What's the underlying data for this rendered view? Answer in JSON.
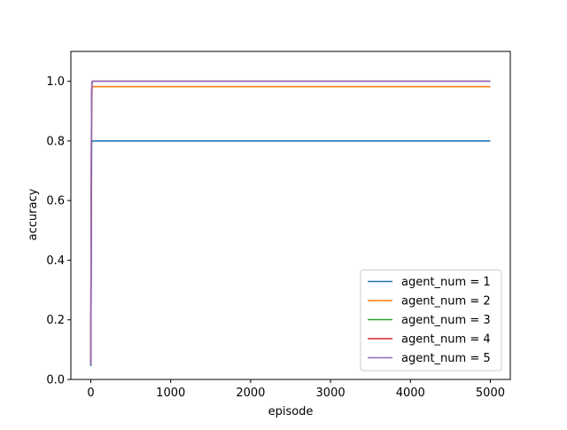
{
  "chart_data": {
    "type": "line",
    "title": "",
    "xlabel": "episode",
    "ylabel": "accuracy",
    "xlim": [
      -250,
      5250
    ],
    "ylim": [
      0.0,
      1.1
    ],
    "xticks": [
      0,
      1000,
      2000,
      3000,
      4000,
      5000
    ],
    "xtick_labels": [
      "0",
      "1000",
      "2000",
      "3000",
      "4000",
      "5000"
    ],
    "yticks": [
      0.0,
      0.2,
      0.4,
      0.6,
      0.8,
      1.0
    ],
    "ytick_labels": [
      "0.0",
      "0.2",
      "0.4",
      "0.6",
      "0.8",
      "1.0"
    ],
    "grid": false,
    "legend_position": "lower-right",
    "series": [
      {
        "name": "agent_num = 1",
        "color": "#1f77b4",
        "x": [
          0,
          5,
          10,
          15,
          20,
          30,
          5000
        ],
        "y": [
          0.045,
          0.5,
          0.79,
          0.8,
          0.8,
          0.8,
          0.8
        ]
      },
      {
        "name": "agent_num = 2",
        "color": "#ff7f0e",
        "x": [
          0,
          5,
          10,
          15,
          20,
          30,
          5000
        ],
        "y": [
          0.06,
          0.6,
          0.93,
          0.98,
          0.982,
          0.982,
          0.982
        ]
      },
      {
        "name": "agent_num = 3",
        "color": "#2ca02c",
        "x": [
          0,
          5,
          10,
          15,
          20,
          30,
          5000
        ],
        "y": [
          0.05,
          0.62,
          0.95,
          0.995,
          1.0,
          1.0,
          1.0
        ]
      },
      {
        "name": "agent_num = 4",
        "color": "#d62728",
        "x": [
          0,
          5,
          10,
          15,
          20,
          30,
          5000
        ],
        "y": [
          0.05,
          0.63,
          0.96,
          0.997,
          1.0,
          1.0,
          1.0
        ]
      },
      {
        "name": "agent_num = 5",
        "color": "#9467bd",
        "x": [
          0,
          5,
          10,
          15,
          20,
          30,
          5000
        ],
        "y": [
          0.05,
          0.64,
          0.97,
          0.998,
          1.0,
          1.0,
          1.0
        ]
      }
    ]
  }
}
